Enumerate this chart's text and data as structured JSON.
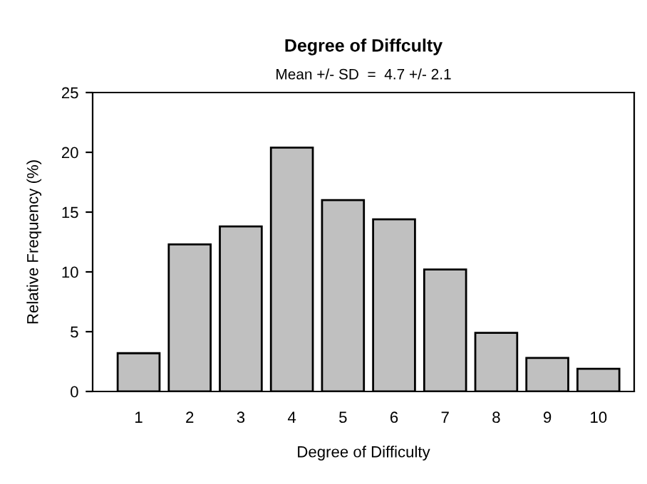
{
  "chart_data": {
    "type": "bar",
    "title": "Degree of Diffculty",
    "subtitle": "Mean +/- SD  =  4.7 +/- 2.1",
    "xlabel": "Degree of Difficulty",
    "ylabel": "Relative Frequency (%)",
    "categories": [
      "1",
      "2",
      "3",
      "4",
      "5",
      "6",
      "7",
      "8",
      "9",
      "10"
    ],
    "values": [
      3.2,
      12.3,
      13.8,
      20.4,
      16.0,
      14.4,
      10.2,
      4.9,
      2.8,
      1.9
    ],
    "color": "#c0c0c0",
    "ylim": [
      0,
      25
    ],
    "yticks": [
      0,
      5,
      10,
      15,
      20,
      25
    ],
    "grid": false,
    "legend": false
  }
}
